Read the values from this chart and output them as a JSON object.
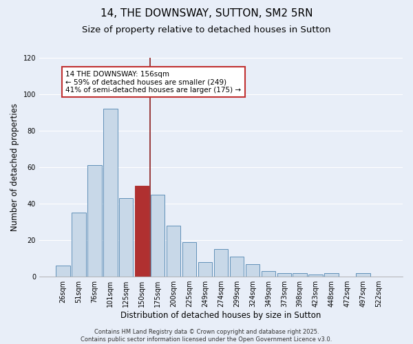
{
  "title": "14, THE DOWNSWAY, SUTTON, SM2 5RN",
  "subtitle": "Size of property relative to detached houses in Sutton",
  "xlabel": "Distribution of detached houses by size in Sutton",
  "ylabel": "Number of detached properties",
  "categories": [
    "26sqm",
    "51sqm",
    "76sqm",
    "101sqm",
    "125sqm",
    "150sqm",
    "175sqm",
    "200sqm",
    "225sqm",
    "249sqm",
    "274sqm",
    "299sqm",
    "324sqm",
    "349sqm",
    "373sqm",
    "398sqm",
    "423sqm",
    "448sqm",
    "472sqm",
    "497sqm",
    "522sqm"
  ],
  "values": [
    6,
    35,
    61,
    92,
    43,
    50,
    45,
    28,
    19,
    8,
    15,
    11,
    7,
    3,
    2,
    2,
    1,
    2,
    0,
    2,
    0
  ],
  "bar_color": "#c8d8e8",
  "bar_edge_color": "#6090b8",
  "highlight_bar_index": 5,
  "highlight_bar_color": "#b03030",
  "highlight_bar_edge_color": "#b03030",
  "vline_x": 5.5,
  "vline_color": "#8b1a1a",
  "annotation_box_text": "14 THE DOWNSWAY: 156sqm\n← 59% of detached houses are smaller (249)\n41% of semi-detached houses are larger (175) →",
  "ylim": [
    0,
    120
  ],
  "yticks": [
    0,
    20,
    40,
    60,
    80,
    100,
    120
  ],
  "background_color": "#e8eef8",
  "plot_background_color": "#e8eef8",
  "grid_color": "#ffffff",
  "footer_text": "Contains HM Land Registry data © Crown copyright and database right 2025.\nContains public sector information licensed under the Open Government Licence v3.0.",
  "title_fontsize": 11,
  "subtitle_fontsize": 9.5,
  "xlabel_fontsize": 8.5,
  "ylabel_fontsize": 8.5,
  "tick_fontsize": 7,
  "annotation_fontsize": 7.5,
  "footer_fontsize": 6
}
